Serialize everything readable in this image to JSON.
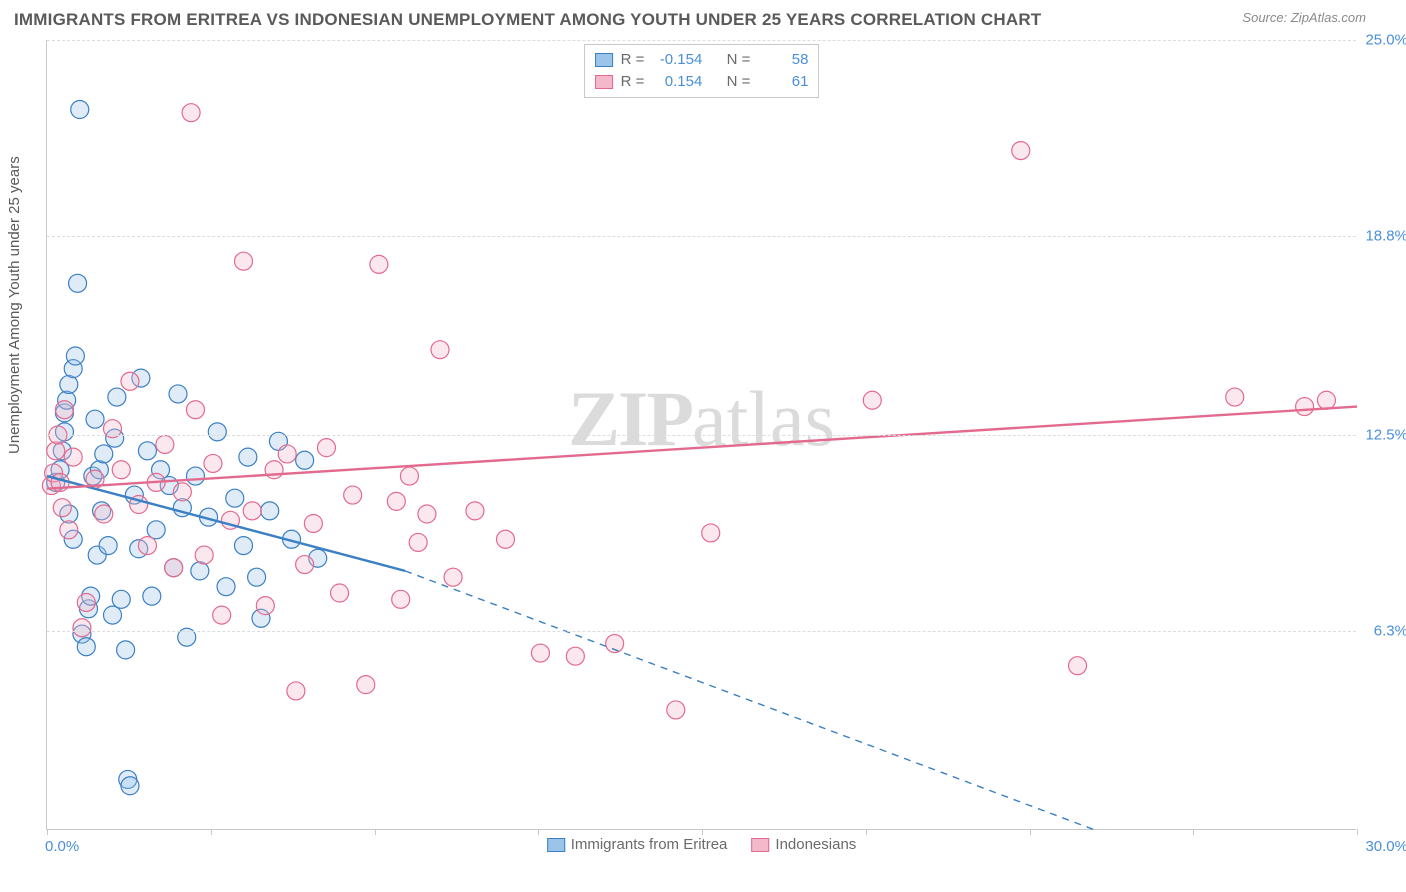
{
  "title": "IMMIGRANTS FROM ERITREA VS INDONESIAN UNEMPLOYMENT AMONG YOUTH UNDER 25 YEARS CORRELATION CHART",
  "source_label": "Source:",
  "source_value": "ZipAtlas.com",
  "y_axis_label": "Unemployment Among Youth under 25 years",
  "watermark_a": "ZIP",
  "watermark_b": "atlas",
  "chart": {
    "type": "scatter",
    "background_color": "#ffffff",
    "grid_color": "#dcdcdc",
    "axis_color": "#c8c8c8",
    "tick_label_color": "#4a8fd8",
    "title_color": "#5a5a5a",
    "title_fontsize": 17,
    "label_fontsize": 15,
    "xlim": [
      0,
      30
    ],
    "ylim": [
      0,
      25
    ],
    "x_ticks": [
      0,
      3.75,
      7.5,
      11.25,
      15,
      18.75,
      22.5,
      26.25,
      30
    ],
    "x_tick_labels_shown": {
      "0": "0.0%",
      "30": "30.0%"
    },
    "y_ticks": [
      6.3,
      12.5,
      18.8,
      25.0
    ],
    "y_tick_labels": [
      "6.3%",
      "12.5%",
      "18.8%",
      "25.0%"
    ],
    "marker_radius": 9,
    "marker_stroke_width": 1.2,
    "marker_fill_opacity": 0.32,
    "trendline_width": 2.4,
    "series": [
      {
        "key": "eritrea",
        "label": "Immigrants from Eritrea",
        "color_stroke": "#3b7fc4",
        "color_fill": "#9cc4e8",
        "R_label": "R =",
        "R": "-0.154",
        "N_label": "N =",
        "N": "58",
        "trend": {
          "x1": 0,
          "y1": 11.2,
          "x2_solid": 8.2,
          "y2_solid": 8.2,
          "x2_dash": 24.0,
          "y2_dash": 0.0,
          "solid_then_dash": true
        },
        "points": [
          [
            0.2,
            11.0
          ],
          [
            0.3,
            11.4
          ],
          [
            0.35,
            12.0
          ],
          [
            0.4,
            12.6
          ],
          [
            0.4,
            13.2
          ],
          [
            0.45,
            13.6
          ],
          [
            0.5,
            14.1
          ],
          [
            0.5,
            10.0
          ],
          [
            0.6,
            9.2
          ],
          [
            0.6,
            14.6
          ],
          [
            0.65,
            15.0
          ],
          [
            0.7,
            17.3
          ],
          [
            0.75,
            22.8
          ],
          [
            0.8,
            6.2
          ],
          [
            0.9,
            5.8
          ],
          [
            0.95,
            7.0
          ],
          [
            1.0,
            7.4
          ],
          [
            1.05,
            11.2
          ],
          [
            1.1,
            13.0
          ],
          [
            1.15,
            8.7
          ],
          [
            1.2,
            11.4
          ],
          [
            1.25,
            10.1
          ],
          [
            1.3,
            11.9
          ],
          [
            1.4,
            9.0
          ],
          [
            1.5,
            6.8
          ],
          [
            1.55,
            12.4
          ],
          [
            1.6,
            13.7
          ],
          [
            1.7,
            7.3
          ],
          [
            1.8,
            5.7
          ],
          [
            1.85,
            1.6
          ],
          [
            1.9,
            1.4
          ],
          [
            2.0,
            10.6
          ],
          [
            2.1,
            8.9
          ],
          [
            2.15,
            14.3
          ],
          [
            2.3,
            12.0
          ],
          [
            2.4,
            7.4
          ],
          [
            2.5,
            9.5
          ],
          [
            2.6,
            11.4
          ],
          [
            2.8,
            10.9
          ],
          [
            2.9,
            8.3
          ],
          [
            3.0,
            13.8
          ],
          [
            3.1,
            10.2
          ],
          [
            3.2,
            6.1
          ],
          [
            3.4,
            11.2
          ],
          [
            3.5,
            8.2
          ],
          [
            3.7,
            9.9
          ],
          [
            3.9,
            12.6
          ],
          [
            4.1,
            7.7
          ],
          [
            4.3,
            10.5
          ],
          [
            4.5,
            9.0
          ],
          [
            4.6,
            11.8
          ],
          [
            4.8,
            8.0
          ],
          [
            4.9,
            6.7
          ],
          [
            5.1,
            10.1
          ],
          [
            5.3,
            12.3
          ],
          [
            5.6,
            9.2
          ],
          [
            5.9,
            11.7
          ],
          [
            6.2,
            8.6
          ]
        ]
      },
      {
        "key": "indonesians",
        "label": "Indonesians",
        "color_stroke": "#e36a8f",
        "color_fill": "#f4b8cb",
        "R_label": "R =",
        "R": "0.154",
        "N_label": "N =",
        "N": "61",
        "trend": {
          "x1": 0,
          "y1": 10.8,
          "x2_solid": 30,
          "y2_solid": 13.4,
          "solid_then_dash": false
        },
        "points": [
          [
            0.1,
            10.9
          ],
          [
            0.15,
            11.3
          ],
          [
            0.2,
            12.0
          ],
          [
            0.25,
            12.5
          ],
          [
            0.3,
            11.0
          ],
          [
            0.35,
            10.2
          ],
          [
            0.4,
            13.3
          ],
          [
            0.5,
            9.5
          ],
          [
            0.6,
            11.8
          ],
          [
            0.8,
            6.4
          ],
          [
            0.9,
            7.2
          ],
          [
            1.1,
            11.1
          ],
          [
            1.3,
            10.0
          ],
          [
            1.5,
            12.7
          ],
          [
            1.7,
            11.4
          ],
          [
            1.9,
            14.2
          ],
          [
            2.1,
            10.3
          ],
          [
            2.3,
            9.0
          ],
          [
            2.5,
            11.0
          ],
          [
            2.7,
            12.2
          ],
          [
            2.9,
            8.3
          ],
          [
            3.1,
            10.7
          ],
          [
            3.3,
            22.7
          ],
          [
            3.4,
            13.3
          ],
          [
            3.6,
            8.7
          ],
          [
            3.8,
            11.6
          ],
          [
            4.0,
            6.8
          ],
          [
            4.2,
            9.8
          ],
          [
            4.5,
            18.0
          ],
          [
            4.7,
            10.1
          ],
          [
            5.0,
            7.1
          ],
          [
            5.2,
            11.4
          ],
          [
            5.5,
            11.9
          ],
          [
            5.7,
            4.4
          ],
          [
            5.9,
            8.4
          ],
          [
            6.1,
            9.7
          ],
          [
            6.4,
            12.1
          ],
          [
            6.7,
            7.5
          ],
          [
            7.0,
            10.6
          ],
          [
            7.3,
            4.6
          ],
          [
            7.6,
            17.9
          ],
          [
            8.0,
            10.4
          ],
          [
            8.1,
            7.3
          ],
          [
            8.3,
            11.2
          ],
          [
            8.5,
            9.1
          ],
          [
            8.7,
            10.0
          ],
          [
            9.0,
            15.2
          ],
          [
            9.3,
            8.0
          ],
          [
            9.8,
            10.1
          ],
          [
            10.5,
            9.2
          ],
          [
            11.3,
            5.6
          ],
          [
            12.1,
            5.5
          ],
          [
            13.0,
            5.9
          ],
          [
            14.4,
            3.8
          ],
          [
            15.2,
            9.4
          ],
          [
            18.9,
            13.6
          ],
          [
            22.3,
            21.5
          ],
          [
            23.6,
            5.2
          ],
          [
            27.2,
            13.7
          ],
          [
            28.8,
            13.4
          ],
          [
            29.3,
            13.6
          ]
        ]
      }
    ]
  },
  "legend_bottom": {
    "items": [
      {
        "key": "eritrea",
        "label": "Immigrants from Eritrea"
      },
      {
        "key": "indonesians",
        "label": "Indonesians"
      }
    ]
  }
}
